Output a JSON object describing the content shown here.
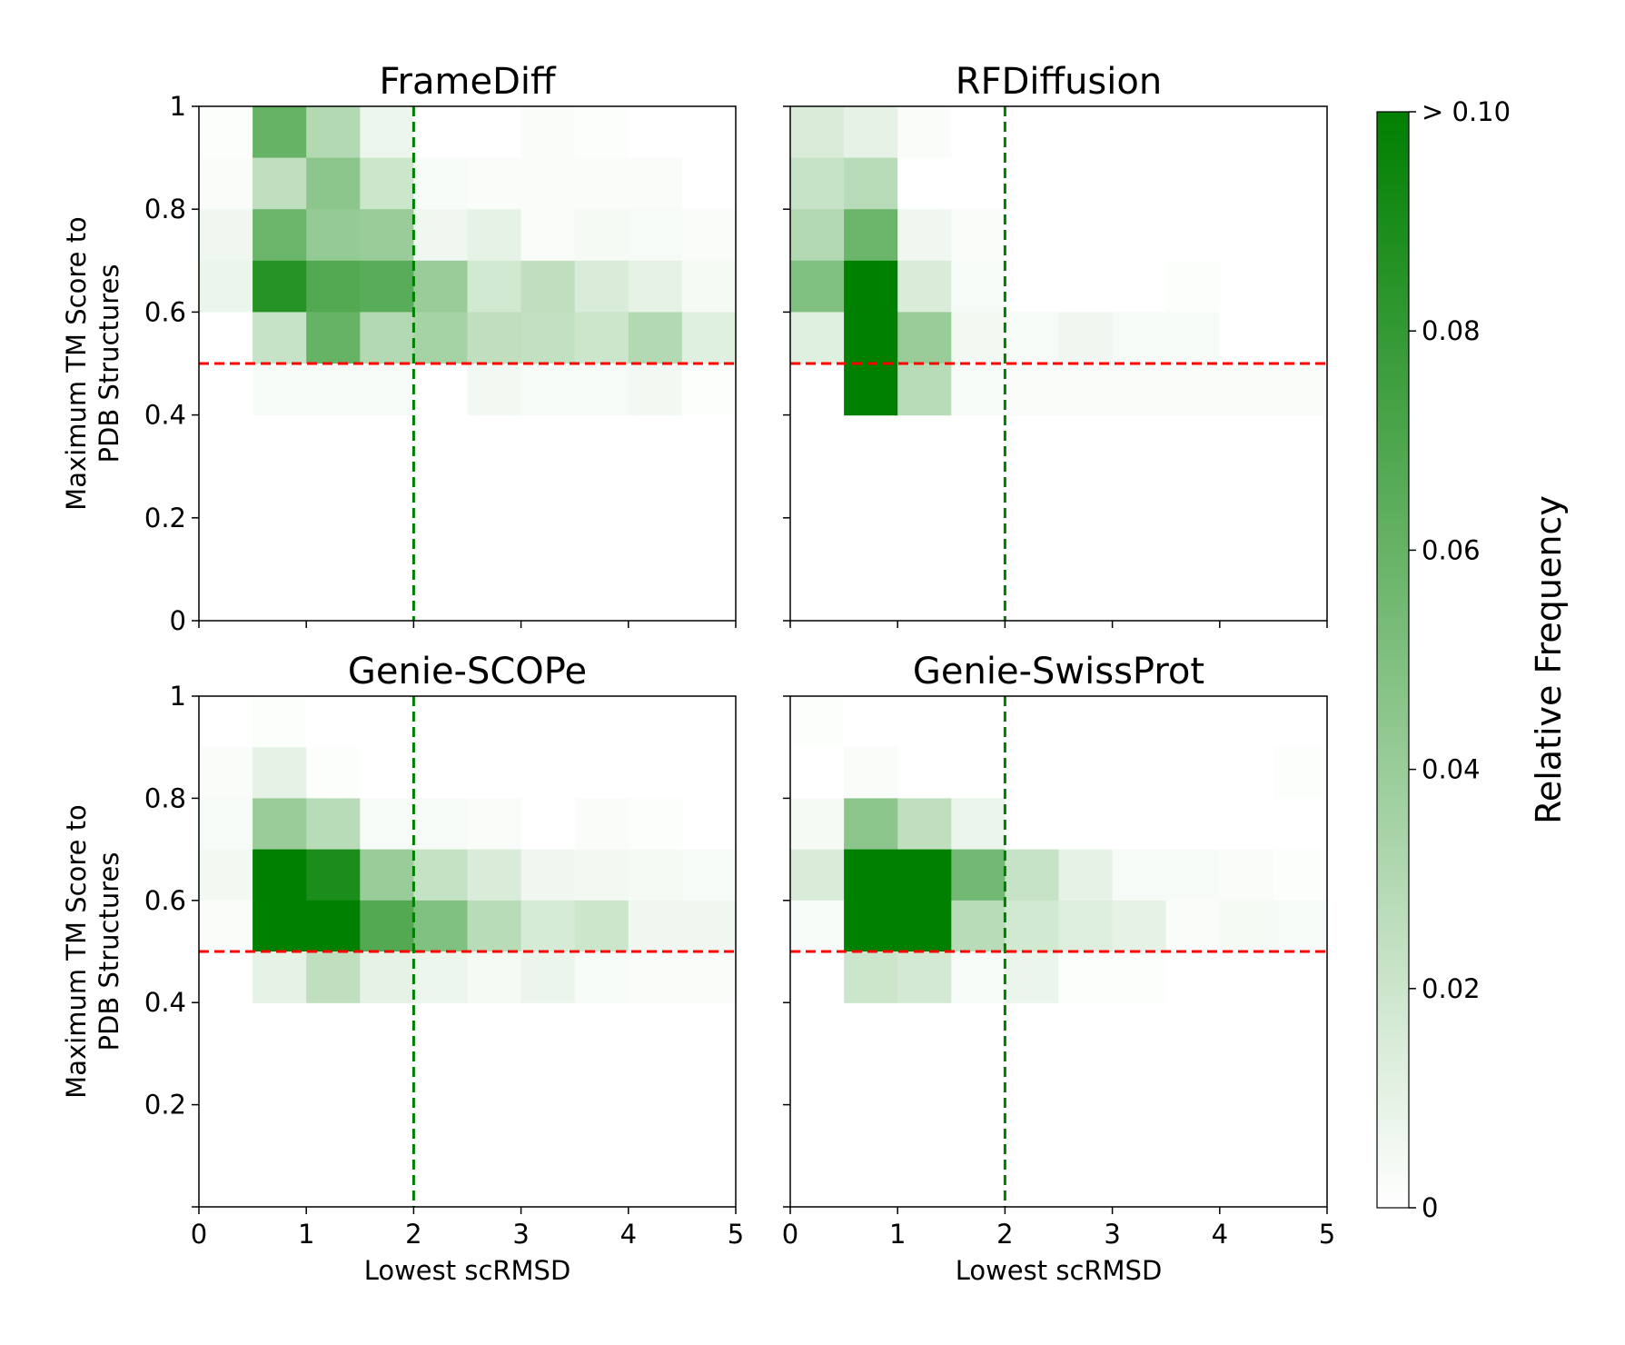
{
  "chart_data": [
    {
      "type": "heatmap",
      "title": "FrameDiff",
      "xlabel": "",
      "ylabel": "Maximum TM Score to PDB Structures",
      "ylabel_lines": [
        "Maximum TM Score to",
        "PDB Structures"
      ],
      "x_bin_edges": [
        0,
        0.5,
        1,
        1.5,
        2,
        2.5,
        3,
        3.5,
        4,
        4.5,
        5
      ],
      "y_bin_edges": [
        0.4,
        0.5,
        0.6,
        0.7,
        0.8,
        0.9,
        1.0
      ],
      "values_top_row_first": [
        [
          0.001,
          0.06,
          0.03,
          0.007,
          0.0,
          0.0,
          0.002,
          0.001,
          0.0,
          0.0
        ],
        [
          0.002,
          0.025,
          0.045,
          0.02,
          0.003,
          0.002,
          0.002,
          0.002,
          0.002,
          0.0
        ],
        [
          0.006,
          0.058,
          0.042,
          0.04,
          0.006,
          0.01,
          0.002,
          0.004,
          0.003,
          0.002
        ],
        [
          0.008,
          0.085,
          0.068,
          0.065,
          0.04,
          0.018,
          0.025,
          0.015,
          0.01,
          0.004
        ],
        [
          0.0,
          0.022,
          0.06,
          0.03,
          0.035,
          0.025,
          0.024,
          0.02,
          0.03,
          0.012
        ],
        [
          0.0,
          0.003,
          0.003,
          0.003,
          0.0,
          0.005,
          0.003,
          0.003,
          0.005,
          0.001
        ]
      ],
      "xlim": [
        0,
        5
      ],
      "ylim": [
        0,
        1
      ],
      "xticks": [
        "0",
        "1",
        "2",
        "3",
        "4",
        "5"
      ],
      "xticks_shown": false,
      "yticks": [
        "0",
        "0.2",
        "0.4",
        "0.6",
        "0.8",
        "1"
      ],
      "yticks_shown": true,
      "threshold_x": 2,
      "threshold_y": 0.5
    },
    {
      "type": "heatmap",
      "title": "RFDiffusion",
      "xlabel": "",
      "ylabel": "",
      "x_bin_edges": [
        0,
        0.5,
        1,
        1.5,
        2,
        2.5,
        3,
        3.5,
        4,
        4.5,
        5
      ],
      "y_bin_edges": [
        0.4,
        0.5,
        0.6,
        0.7,
        0.8,
        0.9,
        1.0
      ],
      "values_top_row_first": [
        [
          0.015,
          0.01,
          0.002,
          0.0,
          0.0,
          0.0,
          0.0,
          0.0,
          0.0,
          0.0
        ],
        [
          0.022,
          0.028,
          0.0,
          0.0,
          0.0,
          0.0,
          0.0,
          0.0,
          0.0,
          0.0
        ],
        [
          0.03,
          0.058,
          0.006,
          0.002,
          0.0,
          0.0,
          0.0,
          0.0,
          0.0,
          0.0
        ],
        [
          0.05,
          0.12,
          0.015,
          0.003,
          0.0,
          0.0,
          0.0,
          0.001,
          0.0,
          0.0
        ],
        [
          0.012,
          0.12,
          0.04,
          0.005,
          0.003,
          0.006,
          0.003,
          0.003,
          0.0,
          0.0
        ],
        [
          0.0,
          0.12,
          0.028,
          0.003,
          0.002,
          0.002,
          0.002,
          0.002,
          0.002,
          0.002
        ]
      ],
      "xlim": [
        0,
        5
      ],
      "ylim": [
        0,
        1
      ],
      "xticks": [
        "0",
        "1",
        "2",
        "3",
        "4",
        "5"
      ],
      "xticks_shown": false,
      "yticks": [],
      "yticks_shown": false,
      "threshold_x": 2,
      "threshold_y": 0.5
    },
    {
      "type": "heatmap",
      "title": "Genie-SCOPe",
      "xlabel": "Lowest scRMSD",
      "ylabel": "Maximum TM Score to PDB Structures",
      "ylabel_lines": [
        "Maximum TM Score to",
        "PDB Structures"
      ],
      "x_bin_edges": [
        0,
        0.5,
        1,
        1.5,
        2,
        2.5,
        3,
        3.5,
        4,
        4.5,
        5
      ],
      "y_bin_edges": [
        0.4,
        0.5,
        0.6,
        0.7,
        0.8,
        0.9,
        1.0
      ],
      "values_top_row_first": [
        [
          0.0,
          0.001,
          0.0,
          0.0,
          0.0,
          0.0,
          0.0,
          0.0,
          0.0,
          0.0
        ],
        [
          0.002,
          0.01,
          0.001,
          0.0,
          0.0,
          0.0,
          0.0,
          0.0,
          0.0,
          0.0
        ],
        [
          0.003,
          0.04,
          0.028,
          0.003,
          0.003,
          0.002,
          0.0,
          0.002,
          0.001,
          0.0
        ],
        [
          0.005,
          0.12,
          0.09,
          0.04,
          0.023,
          0.015,
          0.006,
          0.005,
          0.004,
          0.003
        ],
        [
          0.002,
          0.12,
          0.12,
          0.068,
          0.05,
          0.028,
          0.016,
          0.02,
          0.006,
          0.006
        ],
        [
          0.0,
          0.01,
          0.025,
          0.01,
          0.007,
          0.004,
          0.008,
          0.003,
          0.002,
          0.002
        ]
      ],
      "xlim": [
        0,
        5
      ],
      "ylim": [
        0,
        1
      ],
      "xticks": [
        "0",
        "1",
        "2",
        "3",
        "4",
        "5"
      ],
      "xticks_shown": true,
      "yticks": [
        "0.2",
        "0.4",
        "0.6",
        "0.8",
        "1"
      ],
      "yticks_shown": true,
      "threshold_x": 2,
      "threshold_y": 0.5
    },
    {
      "type": "heatmap",
      "title": "Genie-SwissProt",
      "xlabel": "Lowest scRMSD",
      "ylabel": "",
      "x_bin_edges": [
        0,
        0.5,
        1,
        1.5,
        2,
        2.5,
        3,
        3.5,
        4,
        4.5,
        5
      ],
      "y_bin_edges": [
        0.4,
        0.5,
        0.6,
        0.7,
        0.8,
        0.9,
        1.0
      ],
      "values_top_row_first": [
        [
          0.001,
          0.0,
          0.0,
          0.0,
          0.0,
          0.0,
          0.0,
          0.0,
          0.0,
          0.0
        ],
        [
          0.0,
          0.002,
          0.0,
          0.0,
          0.0,
          0.0,
          0.0,
          0.0,
          0.0,
          0.001
        ],
        [
          0.004,
          0.045,
          0.025,
          0.008,
          0.0,
          0.0,
          0.0,
          0.0,
          0.0,
          0.0
        ],
        [
          0.015,
          0.12,
          0.12,
          0.055,
          0.022,
          0.01,
          0.003,
          0.003,
          0.002,
          0.001
        ],
        [
          0.003,
          0.12,
          0.12,
          0.028,
          0.018,
          0.013,
          0.01,
          0.002,
          0.004,
          0.003
        ],
        [
          0.0,
          0.02,
          0.017,
          0.003,
          0.008,
          0.001,
          0.001,
          0.0,
          0.0,
          0.0
        ]
      ],
      "xlim": [
        0,
        5
      ],
      "ylim": [
        0,
        1
      ],
      "xticks": [
        "0",
        "1",
        "2",
        "3",
        "4",
        "5"
      ],
      "xticks_shown": true,
      "yticks": [],
      "yticks_shown": false,
      "threshold_x": 2,
      "threshold_y": 0.5
    }
  ],
  "colorbar": {
    "label": "Relative Frequency",
    "min": 0,
    "max": 0.1,
    "tick_values": [
      0,
      0.02,
      0.04,
      0.06,
      0.08,
      0.1
    ],
    "tick_labels": [
      "0",
      "0.02",
      "0.04",
      "0.06",
      "0.08",
      "> 0.10"
    ],
    "color_low": "#ffffff",
    "color_high": "#008000"
  },
  "colors": {
    "threshold_x_line": "#008000",
    "threshold_y_line": "#ff0000"
  }
}
